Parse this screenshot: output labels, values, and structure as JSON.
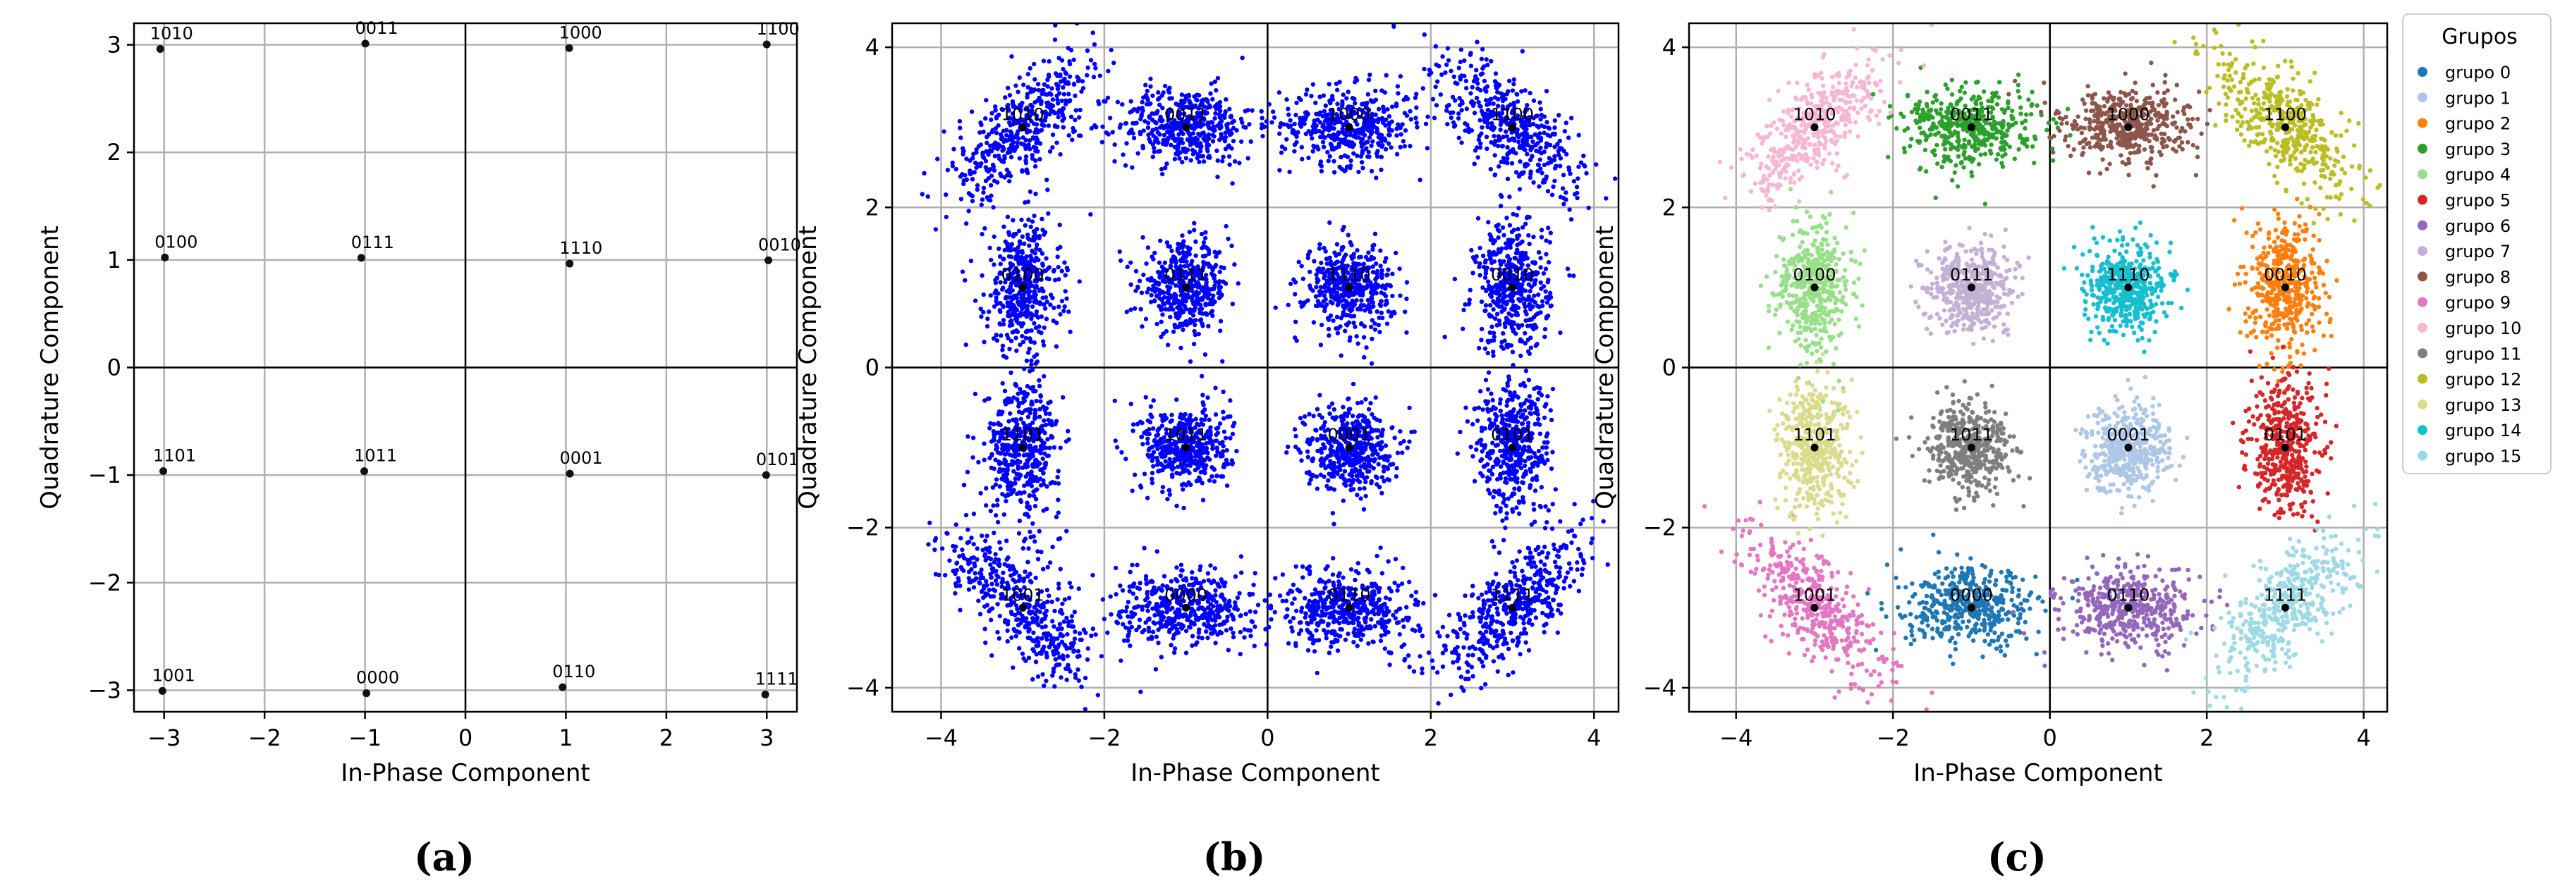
{
  "chart_data": [
    {
      "type": "scatter",
      "panel_label": "(a)",
      "xlabel": "In-Phase Component",
      "ylabel": "Quadrature Component",
      "xlim": [
        -3.3,
        3.3
      ],
      "ylim": [
        -3.2,
        3.2
      ],
      "xticks": [
        -3,
        -2,
        -1,
        0,
        1,
        2,
        3
      ],
      "yticks": [
        -3,
        -2,
        -1,
        0,
        1,
        2,
        3
      ],
      "grid": true,
      "points": [
        {
          "label": "1010",
          "x": -3,
          "y": 3
        },
        {
          "label": "0011",
          "x": -1,
          "y": 3
        },
        {
          "label": "1000",
          "x": 1,
          "y": 3
        },
        {
          "label": "1100",
          "x": 3,
          "y": 3
        },
        {
          "label": "0100",
          "x": -3,
          "y": 1
        },
        {
          "label": "0111",
          "x": -1,
          "y": 1
        },
        {
          "label": "1110",
          "x": 1,
          "y": 1
        },
        {
          "label": "0010",
          "x": 3,
          "y": 1
        },
        {
          "label": "1101",
          "x": -3,
          "y": -1
        },
        {
          "label": "1011",
          "x": -1,
          "y": -1
        },
        {
          "label": "0001",
          "x": 1,
          "y": -1
        },
        {
          "label": "0101",
          "x": 3,
          "y": -1
        },
        {
          "label": "1001",
          "x": -3,
          "y": -3
        },
        {
          "label": "0000",
          "x": -1,
          "y": -3
        },
        {
          "label": "0110",
          "x": 1,
          "y": -3
        },
        {
          "label": "1111",
          "x": 3,
          "y": -3
        }
      ]
    },
    {
      "type": "scatter",
      "panel_label": "(b)",
      "xlabel": "In-Phase Component",
      "ylabel": "Quadrature Component",
      "xlim": [
        -4.6,
        4.3
      ],
      "ylim": [
        -4.3,
        4.3
      ],
      "xticks": [
        -4,
        -2,
        0,
        2,
        4
      ],
      "yticks": [
        -4,
        -2,
        0,
        2,
        4
      ],
      "grid": true,
      "point_color": "#0000ff",
      "points_per_cluster": 450,
      "noise_std": 0.27,
      "clusters": [
        {
          "label": "1010",
          "x": -3,
          "y": 3
        },
        {
          "label": "0011",
          "x": -1,
          "y": 3
        },
        {
          "label": "1000",
          "x": 1,
          "y": 3
        },
        {
          "label": "1100",
          "x": 3,
          "y": 3
        },
        {
          "label": "0100",
          "x": -3,
          "y": 1
        },
        {
          "label": "0111",
          "x": -1,
          "y": 1
        },
        {
          "label": "1110",
          "x": 1,
          "y": 1
        },
        {
          "label": "0010",
          "x": 3,
          "y": 1
        },
        {
          "label": "1101",
          "x": -3,
          "y": -1
        },
        {
          "label": "1011",
          "x": -1,
          "y": -1
        },
        {
          "label": "0001",
          "x": 1,
          "y": -1
        },
        {
          "label": "0101",
          "x": 3,
          "y": -1
        },
        {
          "label": "1001",
          "x": -3,
          "y": -3
        },
        {
          "label": "0000",
          "x": -1,
          "y": -3
        },
        {
          "label": "0110",
          "x": 1,
          "y": -3
        },
        {
          "label": "1111",
          "x": 3,
          "y": -3
        }
      ]
    },
    {
      "type": "scatter",
      "panel_label": "(c)",
      "xlabel": "In-Phase Component",
      "ylabel": "Quadrature Component",
      "xlim": [
        -4.6,
        4.3
      ],
      "ylim": [
        -4.3,
        4.3
      ],
      "xticks": [
        -4,
        -2,
        0,
        2,
        4
      ],
      "yticks": [
        -4,
        -2,
        0,
        2,
        4
      ],
      "grid": true,
      "points_per_cluster": 450,
      "noise_std": 0.27,
      "legend": {
        "title": "Grupos",
        "placement": "outside right"
      },
      "clusters": [
        {
          "label": "0000",
          "group": "grupo 0",
          "color": "#1f77b4",
          "x": -1,
          "y": -3
        },
        {
          "label": "0001",
          "group": "grupo 1",
          "color": "#aec7e8",
          "x": 1,
          "y": -1
        },
        {
          "label": "0010",
          "group": "grupo 2",
          "color": "#ff7f0e",
          "x": 3,
          "y": 1
        },
        {
          "label": "0011",
          "group": "grupo 3",
          "color": "#2ca02c",
          "x": -1,
          "y": 3
        },
        {
          "label": "0100",
          "group": "grupo 4",
          "color": "#98df8a",
          "x": -3,
          "y": 1
        },
        {
          "label": "0101",
          "group": "grupo 5",
          "color": "#d62728",
          "x": 3,
          "y": -1
        },
        {
          "label": "0110",
          "group": "grupo 6",
          "color": "#9467bd",
          "x": 1,
          "y": -3
        },
        {
          "label": "0111",
          "group": "grupo 7",
          "color": "#c5b0d5",
          "x": -1,
          "y": 1
        },
        {
          "label": "1000",
          "group": "grupo 8",
          "color": "#8c564b",
          "x": 1,
          "y": 3
        },
        {
          "label": "1001",
          "group": "grupo 9",
          "color": "#e377c2",
          "x": -3,
          "y": -3
        },
        {
          "label": "1010",
          "group": "grupo 10",
          "color": "#f7b6d2",
          "x": -3,
          "y": 3
        },
        {
          "label": "1011",
          "group": "grupo 11",
          "color": "#7f7f7f",
          "x": -1,
          "y": -1
        },
        {
          "label": "1100",
          "group": "grupo 12",
          "color": "#bcbd22",
          "x": 3,
          "y": 3
        },
        {
          "label": "1101",
          "group": "grupo 13",
          "color": "#dbdb8d",
          "x": -3,
          "y": -1
        },
        {
          "label": "1110",
          "group": "grupo 14",
          "color": "#17becf",
          "x": 1,
          "y": 1
        },
        {
          "label": "1111",
          "group": "grupo 15",
          "color": "#9edae5",
          "x": 3,
          "y": -3
        }
      ]
    }
  ]
}
